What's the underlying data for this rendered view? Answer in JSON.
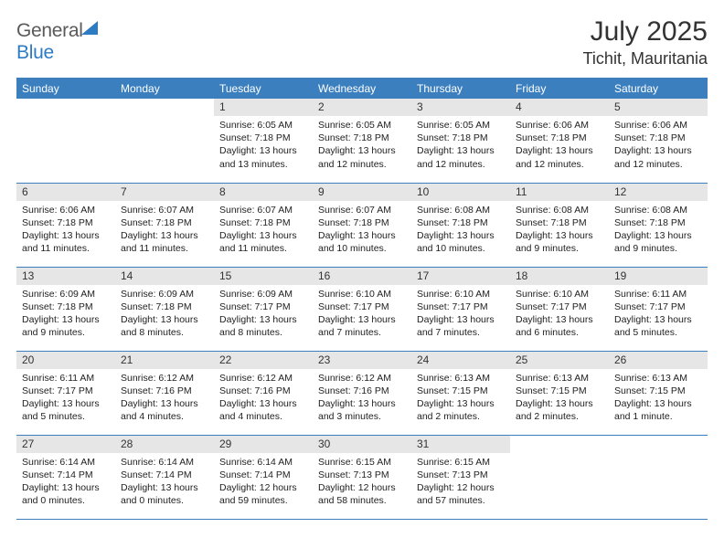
{
  "brand": {
    "part1": "General",
    "part2": "Blue"
  },
  "title": {
    "month": "July 2025",
    "location": "Tichit, Mauritania"
  },
  "colors": {
    "header_bg": "#3b7fbf",
    "header_text": "#ffffff",
    "daynum_bg": "#e6e6e6",
    "border": "#3b7fbf",
    "brand_gray": "#5a5a5a",
    "brand_blue": "#2d7bc3",
    "background": "#ffffff"
  },
  "typography": {
    "title_fontsize": 30,
    "location_fontsize": 18,
    "dayheader_fontsize": 12,
    "daynum_fontsize": 12,
    "body_fontsize": 10.5
  },
  "days_of_week": [
    "Sunday",
    "Monday",
    "Tuesday",
    "Wednesday",
    "Thursday",
    "Friday",
    "Saturday"
  ],
  "weeks": [
    [
      {
        "n": "",
        "sr": "",
        "ss": "",
        "dl": ""
      },
      {
        "n": "",
        "sr": "",
        "ss": "",
        "dl": ""
      },
      {
        "n": "1",
        "sr": "6:05 AM",
        "ss": "7:18 PM",
        "dl": "13 hours and 13 minutes."
      },
      {
        "n": "2",
        "sr": "6:05 AM",
        "ss": "7:18 PM",
        "dl": "13 hours and 12 minutes."
      },
      {
        "n": "3",
        "sr": "6:05 AM",
        "ss": "7:18 PM",
        "dl": "13 hours and 12 minutes."
      },
      {
        "n": "4",
        "sr": "6:06 AM",
        "ss": "7:18 PM",
        "dl": "13 hours and 12 minutes."
      },
      {
        "n": "5",
        "sr": "6:06 AM",
        "ss": "7:18 PM",
        "dl": "13 hours and 12 minutes."
      }
    ],
    [
      {
        "n": "6",
        "sr": "6:06 AM",
        "ss": "7:18 PM",
        "dl": "13 hours and 11 minutes."
      },
      {
        "n": "7",
        "sr": "6:07 AM",
        "ss": "7:18 PM",
        "dl": "13 hours and 11 minutes."
      },
      {
        "n": "8",
        "sr": "6:07 AM",
        "ss": "7:18 PM",
        "dl": "13 hours and 11 minutes."
      },
      {
        "n": "9",
        "sr": "6:07 AM",
        "ss": "7:18 PM",
        "dl": "13 hours and 10 minutes."
      },
      {
        "n": "10",
        "sr": "6:08 AM",
        "ss": "7:18 PM",
        "dl": "13 hours and 10 minutes."
      },
      {
        "n": "11",
        "sr": "6:08 AM",
        "ss": "7:18 PM",
        "dl": "13 hours and 9 minutes."
      },
      {
        "n": "12",
        "sr": "6:08 AM",
        "ss": "7:18 PM",
        "dl": "13 hours and 9 minutes."
      }
    ],
    [
      {
        "n": "13",
        "sr": "6:09 AM",
        "ss": "7:18 PM",
        "dl": "13 hours and 9 minutes."
      },
      {
        "n": "14",
        "sr": "6:09 AM",
        "ss": "7:18 PM",
        "dl": "13 hours and 8 minutes."
      },
      {
        "n": "15",
        "sr": "6:09 AM",
        "ss": "7:17 PM",
        "dl": "13 hours and 8 minutes."
      },
      {
        "n": "16",
        "sr": "6:10 AM",
        "ss": "7:17 PM",
        "dl": "13 hours and 7 minutes."
      },
      {
        "n": "17",
        "sr": "6:10 AM",
        "ss": "7:17 PM",
        "dl": "13 hours and 7 minutes."
      },
      {
        "n": "18",
        "sr": "6:10 AM",
        "ss": "7:17 PM",
        "dl": "13 hours and 6 minutes."
      },
      {
        "n": "19",
        "sr": "6:11 AM",
        "ss": "7:17 PM",
        "dl": "13 hours and 5 minutes."
      }
    ],
    [
      {
        "n": "20",
        "sr": "6:11 AM",
        "ss": "7:17 PM",
        "dl": "13 hours and 5 minutes."
      },
      {
        "n": "21",
        "sr": "6:12 AM",
        "ss": "7:16 PM",
        "dl": "13 hours and 4 minutes."
      },
      {
        "n": "22",
        "sr": "6:12 AM",
        "ss": "7:16 PM",
        "dl": "13 hours and 4 minutes."
      },
      {
        "n": "23",
        "sr": "6:12 AM",
        "ss": "7:16 PM",
        "dl": "13 hours and 3 minutes."
      },
      {
        "n": "24",
        "sr": "6:13 AM",
        "ss": "7:15 PM",
        "dl": "13 hours and 2 minutes."
      },
      {
        "n": "25",
        "sr": "6:13 AM",
        "ss": "7:15 PM",
        "dl": "13 hours and 2 minutes."
      },
      {
        "n": "26",
        "sr": "6:13 AM",
        "ss": "7:15 PM",
        "dl": "13 hours and 1 minute."
      }
    ],
    [
      {
        "n": "27",
        "sr": "6:14 AM",
        "ss": "7:14 PM",
        "dl": "13 hours and 0 minutes."
      },
      {
        "n": "28",
        "sr": "6:14 AM",
        "ss": "7:14 PM",
        "dl": "13 hours and 0 minutes."
      },
      {
        "n": "29",
        "sr": "6:14 AM",
        "ss": "7:14 PM",
        "dl": "12 hours and 59 minutes."
      },
      {
        "n": "30",
        "sr": "6:15 AM",
        "ss": "7:13 PM",
        "dl": "12 hours and 58 minutes."
      },
      {
        "n": "31",
        "sr": "6:15 AM",
        "ss": "7:13 PM",
        "dl": "12 hours and 57 minutes."
      },
      {
        "n": "",
        "sr": "",
        "ss": "",
        "dl": ""
      },
      {
        "n": "",
        "sr": "",
        "ss": "",
        "dl": ""
      }
    ]
  ],
  "labels": {
    "sunrise": "Sunrise:",
    "sunset": "Sunset:",
    "daylight": "Daylight:"
  }
}
